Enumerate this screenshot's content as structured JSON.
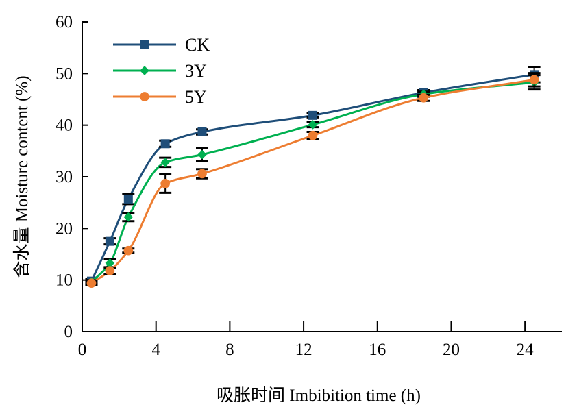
{
  "chart_data": {
    "type": "line",
    "title": "",
    "xlabel": "吸胀时间 Imbibition time (h)",
    "ylabel": "含水量 Moisture content (%)",
    "xlim": [
      0,
      26
    ],
    "ylim": [
      0,
      60
    ],
    "xticks": [
      0,
      4,
      8,
      12,
      16,
      20,
      24
    ],
    "yticks": [
      0,
      10,
      20,
      30,
      40,
      50,
      60
    ],
    "grid": false,
    "legend_position": "top-left",
    "smooth": true,
    "series": [
      {
        "name": "CK",
        "color": "#1f4e79",
        "marker": "square",
        "x": [
          0.5,
          1.5,
          2.5,
          4.5,
          6.5,
          12.5,
          18.5,
          24.5
        ],
        "y": [
          9.8,
          17.5,
          25.7,
          36.4,
          38.7,
          41.9,
          46.3,
          49.8
        ],
        "error": [
          0.4,
          0.6,
          1.0,
          0.6,
          0.5,
          0.4,
          0.5,
          1.5
        ]
      },
      {
        "name": "3Y",
        "color": "#00b050",
        "marker": "diamond",
        "x": [
          0.5,
          1.5,
          2.5,
          4.5,
          6.5,
          12.5,
          18.5,
          24.5
        ],
        "y": [
          9.6,
          13.3,
          22.2,
          32.8,
          34.3,
          40.1,
          46.0,
          48.3
        ],
        "error": [
          0.4,
          0.8,
          0.8,
          0.9,
          1.3,
          0.5,
          0.5,
          1.4
        ]
      },
      {
        "name": "5Y",
        "color": "#ed7d31",
        "marker": "circle",
        "x": [
          0.5,
          1.5,
          2.5,
          4.5,
          6.5,
          12.5,
          18.5,
          24.5
        ],
        "y": [
          9.4,
          11.8,
          15.7,
          28.7,
          30.6,
          38.0,
          45.3,
          48.8
        ],
        "error": [
          0.4,
          0.6,
          0.4,
          1.8,
          0.9,
          0.7,
          0.6,
          1.3
        ]
      }
    ]
  }
}
